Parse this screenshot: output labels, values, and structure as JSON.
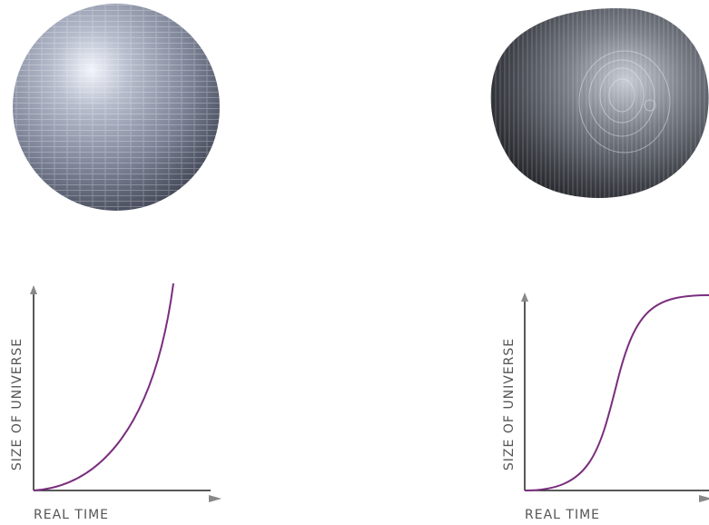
{
  "panels": [
    {
      "y_label": "SIZE OF UNIVERSE",
      "x_label": "REAL TIME"
    },
    {
      "y_label": "SIZE OF UNIVERSE",
      "x_label": "REAL TIME"
    }
  ]
}
